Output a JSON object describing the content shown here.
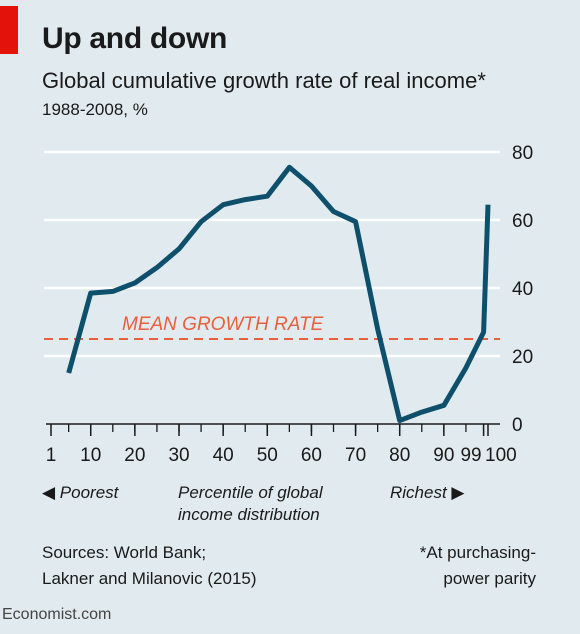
{
  "header": {
    "title": "Up and down",
    "subtitle": "Global cumulative growth rate of real income*",
    "unit": "1988-2008, %"
  },
  "footer": {
    "source_line1": "Sources: World Bank;",
    "source_line2": "Lakner and Milanovic (2015)",
    "note_line1": "*At purchasing-",
    "note_line2": "power parity",
    "credit": "Economist.com"
  },
  "bottom_labels": {
    "left": "◀ Poorest",
    "center_line1": "Percentile of global",
    "center_line2": "income distribution",
    "right": "Richest ▶"
  },
  "colors": {
    "background": "#e1eaef",
    "line": "#0e4f6b",
    "mean": "#e8603c",
    "grid": "#ffffff",
    "accent": "#e3120b"
  },
  "chart_data": {
    "type": "line",
    "x_ticks": [
      1,
      10,
      20,
      30,
      40,
      50,
      60,
      70,
      80,
      90,
      99,
      100
    ],
    "x_tick_labels": [
      "1",
      "10",
      "20",
      "30",
      "40",
      "50",
      "60",
      "70",
      "80",
      "90",
      "99",
      "100"
    ],
    "y_ticks": [
      0,
      20,
      40,
      60,
      80
    ],
    "ylim": [
      0,
      80
    ],
    "grid": true,
    "series": [
      {
        "x": [
          5,
          10,
          15,
          20,
          25,
          30,
          35,
          40,
          45,
          50,
          55,
          60,
          65,
          70,
          75,
          80,
          85,
          90,
          95,
          99,
          100
        ],
        "values": [
          15,
          38.5,
          39,
          41.5,
          46,
          51.5,
          59.5,
          64.5,
          66,
          67,
          75.5,
          70,
          62.5,
          59.5,
          28,
          1,
          3.5,
          5.5,
          16.5,
          27,
          64.5
        ]
      }
    ],
    "mean": {
      "label": "MEAN GROWTH RATE",
      "value": 25
    }
  }
}
